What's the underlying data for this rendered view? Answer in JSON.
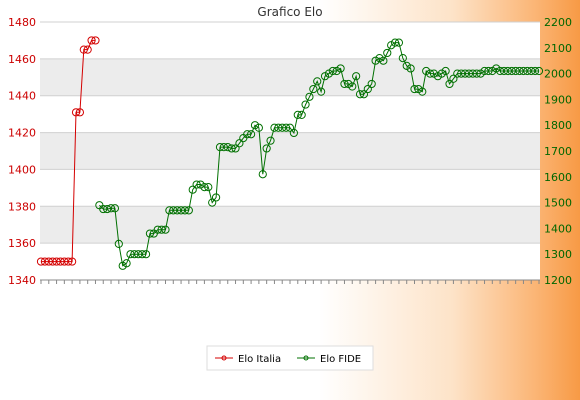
{
  "chart_data": {
    "type": "line",
    "title": "Grafico Elo",
    "legend_position": "bottom",
    "grid": true,
    "y_left": {
      "ylim": [
        1340,
        1480
      ],
      "ticks": [
        1340,
        1360,
        1380,
        1400,
        1420,
        1440,
        1460,
        1480
      ],
      "color": "#cc0000"
    },
    "y_right": {
      "ylim": [
        1200,
        2200
      ],
      "ticks": [
        1200,
        1300,
        1400,
        1500,
        1600,
        1700,
        1800,
        1900,
        2000,
        2100,
        2200
      ],
      "color": "#006600"
    },
    "series": [
      {
        "name": "Elo Italia",
        "axis": "left",
        "color": "#d40000",
        "x": [
          0,
          1,
          2,
          3,
          4,
          5,
          6,
          7,
          8,
          9,
          10,
          11,
          12,
          13,
          14
        ],
        "values": [
          1350,
          1350,
          1350,
          1350,
          1350,
          1350,
          1350,
          1350,
          1350,
          1431,
          1431,
          1465,
          1465,
          1470,
          1470
        ]
      },
      {
        "name": "Elo FIDE",
        "axis": "right",
        "color": "#007000",
        "x": [
          15,
          16,
          17,
          18,
          19,
          20,
          21,
          22,
          23,
          24,
          25,
          26,
          27,
          28,
          29,
          30,
          31,
          32,
          33,
          34,
          35,
          36,
          37,
          38,
          39,
          40,
          41,
          42,
          43,
          44,
          45,
          46,
          47,
          48,
          49,
          50,
          51,
          52,
          53,
          54,
          55,
          56,
          57,
          58,
          59,
          60,
          61,
          62,
          63,
          64,
          65,
          66,
          67,
          68,
          69,
          70,
          71,
          72,
          73,
          74,
          75,
          76,
          77,
          78,
          79,
          80,
          81,
          82,
          83,
          84,
          85,
          86,
          87,
          88,
          89,
          90,
          91,
          92,
          93,
          94,
          95,
          96,
          97,
          98,
          99,
          100,
          101,
          102,
          103,
          104,
          105,
          106,
          107,
          108,
          109,
          110,
          111,
          112,
          113,
          114,
          115,
          116,
          117,
          118,
          119,
          120,
          121,
          122,
          123,
          124,
          125,
          126,
          127,
          128
        ],
        "values": [
          1490,
          1475,
          1475,
          1478,
          1478,
          1340,
          1255,
          1265,
          1300,
          1300,
          1300,
          1300,
          1300,
          1380,
          1380,
          1395,
          1395,
          1395,
          1470,
          1470,
          1470,
          1470,
          1470,
          1470,
          1550,
          1570,
          1570,
          1560,
          1560,
          1500,
          1520,
          1715,
          1715,
          1715,
          1710,
          1710,
          1730,
          1750,
          1765,
          1765,
          1800,
          1790,
          1610,
          1710,
          1740,
          1790,
          1790,
          1790,
          1790,
          1790,
          1770,
          1840,
          1840,
          1880,
          1910,
          1940,
          1970,
          1930,
          1990,
          2000,
          2010,
          2010,
          2020,
          1960,
          1960,
          1950,
          1990,
          1920,
          1920,
          1940,
          1960,
          2050,
          2060,
          2050,
          2080,
          2110,
          2120,
          2120,
          2060,
          2030,
          2020,
          1940,
          1940,
          1930,
          2010,
          2000,
          2000,
          1990,
          2000,
          2010,
          1960,
          1980,
          2000,
          2000,
          2000,
          2000,
          2000,
          2000,
          2000,
          2010,
          2010,
          2010,
          2020,
          2010,
          2010,
          2010,
          2010,
          2010,
          2010,
          2010,
          2010,
          2010,
          2010,
          2010
        ],
        "note_x": "x is the rating-list index along the horizontal axis (dates unreadable)"
      }
    ]
  }
}
